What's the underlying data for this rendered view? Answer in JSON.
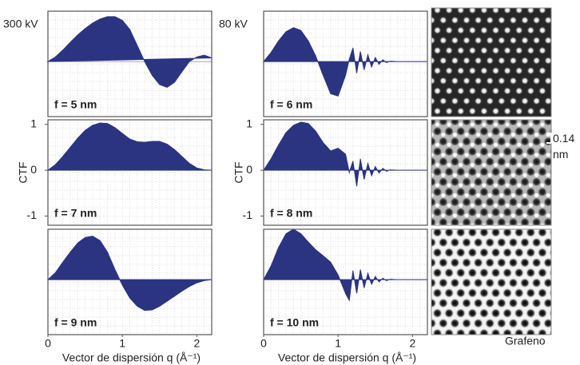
{
  "chart_data": [
    {
      "type": "area",
      "annotation": "300 kV",
      "title": "f = 5 nm",
      "color": "#2b3480",
      "x": [
        0,
        0.1,
        0.2,
        0.3,
        0.4,
        0.5,
        0.6,
        0.7,
        0.8,
        0.9,
        1.0,
        1.1,
        1.2,
        1.3,
        1.4,
        1.5,
        1.6,
        1.7,
        1.8,
        1.9,
        2.0,
        2.1,
        2.2
      ],
      "values": [
        0,
        0.1,
        0.25,
        0.42,
        0.58,
        0.72,
        0.84,
        0.93,
        0.98,
        0.98,
        0.9,
        0.7,
        0.35,
        0,
        -0.3,
        -0.5,
        -0.56,
        -0.45,
        -0.22,
        0,
        0.1,
        0.14,
        0.08
      ],
      "xlim": [
        0,
        2.2
      ],
      "ylim": [
        -1.2,
        1.1
      ]
    },
    {
      "type": "area",
      "title": "f = 7 nm",
      "ylabel": "CTF",
      "color": "#2b3480",
      "x": [
        0,
        0.1,
        0.2,
        0.3,
        0.4,
        0.5,
        0.6,
        0.7,
        0.8,
        0.9,
        1.0,
        1.1,
        1.2,
        1.3,
        1.4,
        1.5,
        1.6,
        1.7,
        1.8,
        1.9,
        2.0,
        2.1,
        2.2
      ],
      "values": [
        0,
        0.12,
        0.3,
        0.5,
        0.7,
        0.87,
        0.98,
        1.03,
        1.02,
        0.93,
        0.8,
        0.68,
        0.62,
        0.61,
        0.63,
        0.63,
        0.57,
        0.45,
        0.3,
        0.15,
        0.05,
        0.01,
        0
      ],
      "xlim": [
        0,
        2.2
      ],
      "ylim": [
        -1.2,
        1.1
      ],
      "yticks": [
        -1,
        0,
        1
      ]
    },
    {
      "type": "area",
      "title": "f = 9 nm",
      "xlabel": "Vector de dispersión q (Å⁻¹)",
      "color": "#2b3480",
      "x": [
        0,
        0.1,
        0.2,
        0.3,
        0.4,
        0.5,
        0.6,
        0.7,
        0.8,
        0.9,
        1.0,
        1.1,
        1.2,
        1.3,
        1.4,
        1.5,
        1.6,
        1.7,
        1.8,
        1.9,
        2.0,
        2.1,
        2.2
      ],
      "values": [
        0,
        0.15,
        0.38,
        0.6,
        0.8,
        0.92,
        0.95,
        0.85,
        0.6,
        0.22,
        -0.12,
        -0.4,
        -0.58,
        -0.67,
        -0.66,
        -0.58,
        -0.47,
        -0.36,
        -0.25,
        -0.15,
        -0.07,
        -0.02,
        0
      ],
      "xlim": [
        0,
        2.2
      ],
      "ylim": [
        -1.2,
        1.1
      ],
      "xticks": [
        0,
        1,
        2
      ]
    },
    {
      "type": "area",
      "annotation": "80 kV",
      "title": "f = 6 nm",
      "color": "#2b3480",
      "x": [
        0,
        0.1,
        0.2,
        0.3,
        0.4,
        0.5,
        0.6,
        0.7,
        0.8,
        0.9,
        1.0,
        1.1,
        1.15,
        1.2,
        1.25,
        1.3,
        1.35,
        1.4,
        1.45,
        1.5,
        1.55,
        1.6,
        1.65,
        1.7,
        1.8,
        2.0,
        2.2
      ],
      "values": [
        0,
        0.2,
        0.45,
        0.65,
        0.74,
        0.68,
        0.45,
        0.12,
        -0.3,
        -0.7,
        -0.75,
        -0.3,
        0.05,
        0.3,
        -0.25,
        0.22,
        -0.18,
        0.15,
        -0.12,
        0.09,
        -0.06,
        0.04,
        -0.02,
        0.01,
        0,
        0,
        0
      ],
      "xlim": [
        0,
        2.2
      ],
      "ylim": [
        -1.2,
        1.1
      ]
    },
    {
      "type": "area",
      "title": "f = 8 nm",
      "ylabel": "CTF",
      "color": "#2b3480",
      "x": [
        0,
        0.1,
        0.2,
        0.3,
        0.4,
        0.5,
        0.6,
        0.7,
        0.8,
        0.9,
        1.0,
        1.1,
        1.15,
        1.2,
        1.25,
        1.3,
        1.35,
        1.4,
        1.45,
        1.5,
        1.55,
        1.6,
        1.65,
        1.7,
        1.8,
        2.0,
        2.2
      ],
      "values": [
        0,
        0.25,
        0.55,
        0.82,
        0.98,
        1.05,
        1.02,
        0.85,
        0.6,
        0.42,
        0.48,
        0.35,
        -0.05,
        0.2,
        -0.35,
        0.25,
        -0.2,
        0.15,
        -0.12,
        0.08,
        -0.06,
        0.04,
        -0.02,
        0.01,
        0,
        0,
        0
      ],
      "xlim": [
        0,
        2.2
      ],
      "ylim": [
        -1.2,
        1.1
      ],
      "yticks": [
        -1,
        0,
        1
      ]
    },
    {
      "type": "area",
      "title": "f = 10 nm",
      "xlabel": "Vector de dispersión q (Å⁻¹)",
      "color": "#2b3480",
      "x": [
        0,
        0.1,
        0.2,
        0.3,
        0.4,
        0.5,
        0.6,
        0.7,
        0.8,
        0.9,
        1.0,
        1.1,
        1.15,
        1.2,
        1.25,
        1.3,
        1.35,
        1.4,
        1.45,
        1.5,
        1.55,
        1.6,
        1.65,
        1.7,
        1.8,
        2.0,
        2.2
      ],
      "values": [
        0,
        0.3,
        0.7,
        1.0,
        1.1,
        1.0,
        0.82,
        0.65,
        0.52,
        0.38,
        0.1,
        -0.3,
        -0.45,
        0.2,
        -0.3,
        0.22,
        -0.18,
        0.14,
        -0.1,
        0.07,
        -0.05,
        0.03,
        -0.02,
        0.01,
        0,
        0,
        0
      ],
      "xlim": [
        0,
        2.2
      ],
      "ylim": [
        -1.2,
        1.1
      ],
      "xticks": [
        0,
        1,
        2
      ]
    }
  ],
  "images": {
    "scale_label": "0.14 nm",
    "caption": "Grafeno"
  }
}
